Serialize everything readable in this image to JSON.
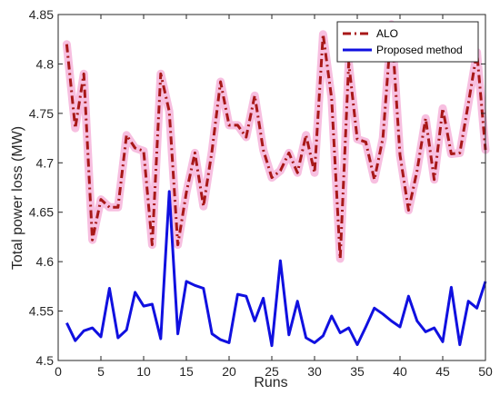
{
  "chart_data": {
    "type": "line",
    "xlabel": "Runs",
    "ylabel": "Total power loss (MW)",
    "xlim": [
      0,
      50
    ],
    "ylim": [
      4.5,
      4.85
    ],
    "xticks": [
      0,
      5,
      10,
      15,
      20,
      25,
      30,
      35,
      40,
      45,
      50
    ],
    "yticks": [
      4.5,
      4.55,
      4.6,
      4.65,
      4.7,
      4.75,
      4.8,
      4.85
    ],
    "xtick_labels": [
      "0",
      "5",
      "10",
      "15",
      "20",
      "25",
      "30",
      "35",
      "40",
      "45",
      "50"
    ],
    "ytick_labels": [
      "4.5",
      "4.55",
      "4.6",
      "4.65",
      "4.7",
      "4.75",
      "4.8",
      "4.85"
    ],
    "grid": false,
    "legend_position": "top-right",
    "x": [
      1,
      2,
      3,
      4,
      5,
      6,
      7,
      8,
      9,
      10,
      11,
      12,
      13,
      14,
      15,
      16,
      17,
      18,
      19,
      20,
      21,
      22,
      23,
      24,
      25,
      26,
      27,
      28,
      29,
      30,
      31,
      32,
      33,
      34,
      35,
      36,
      37,
      38,
      39,
      40,
      41,
      42,
      43,
      44,
      45,
      46,
      47,
      48,
      49,
      50
    ],
    "series": [
      {
        "name": "ALO",
        "color": "#a81818",
        "style": "dash-dot",
        "halo_color": "#f7bfe0",
        "values": [
          4.82,
          4.735,
          4.79,
          4.622,
          4.663,
          4.655,
          4.655,
          4.728,
          4.715,
          4.712,
          4.617,
          4.79,
          4.752,
          4.617,
          4.67,
          4.71,
          4.656,
          4.712,
          4.782,
          4.738,
          4.738,
          4.726,
          4.768,
          4.713,
          4.685,
          4.692,
          4.71,
          4.69,
          4.728,
          4.69,
          4.83,
          4.765,
          4.603,
          4.801,
          4.724,
          4.721,
          4.683,
          4.725,
          4.84,
          4.708,
          4.652,
          4.692,
          4.745,
          4.683,
          4.755,
          4.709,
          4.71,
          4.76,
          4.812,
          4.713
        ]
      },
      {
        "name": "Proposed method",
        "color": "#1010e0",
        "style": "solid",
        "values": [
          4.538,
          4.52,
          4.53,
          4.533,
          4.524,
          4.573,
          4.523,
          4.531,
          4.569,
          4.555,
          4.557,
          4.522,
          4.671,
          4.527,
          4.58,
          4.576,
          4.573,
          4.527,
          4.521,
          4.518,
          4.567,
          4.565,
          4.54,
          4.563,
          4.515,
          4.601,
          4.526,
          4.56,
          4.523,
          4.518,
          4.525,
          4.545,
          4.528,
          4.533,
          4.516,
          4.534,
          4.553,
          4.547,
          4.54,
          4.534,
          4.565,
          4.54,
          4.529,
          4.533,
          4.519,
          4.574,
          4.516,
          4.56,
          4.553,
          4.58
        ]
      }
    ]
  }
}
